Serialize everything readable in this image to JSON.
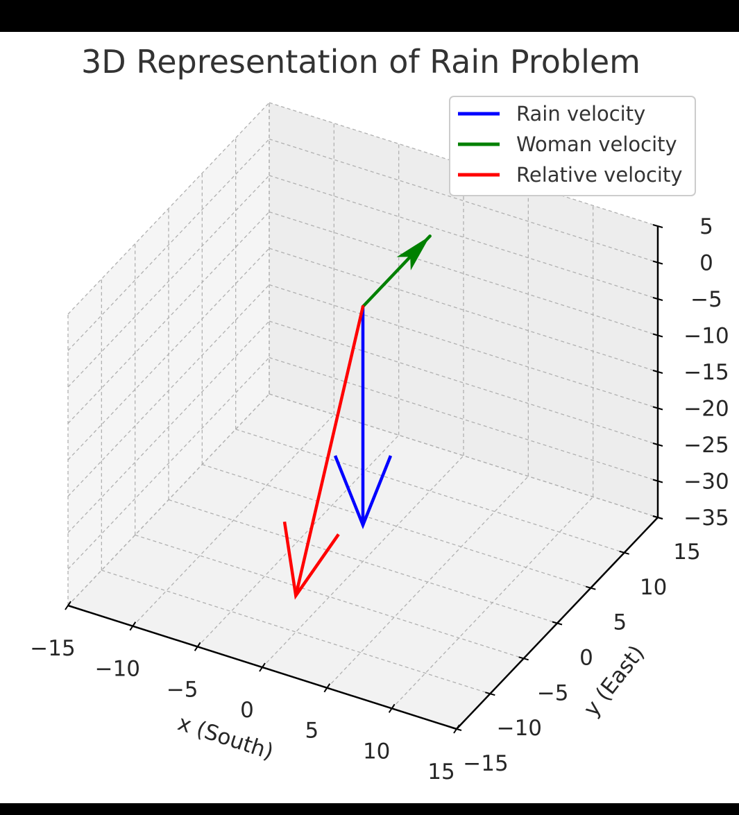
{
  "chart_data": {
    "type": "line",
    "title": "3D Representation of Rain Problem",
    "xlabel": "x (South)",
    "ylabel": "y (East)",
    "zlabel": "",
    "xlim": [
      -15,
      15
    ],
    "ylim": [
      -15,
      15
    ],
    "zlim": [
      -35,
      5
    ],
    "x_ticks": [
      "−15",
      "−10",
      "−5",
      "0",
      "5",
      "10",
      "15"
    ],
    "y_ticks": [
      "−15",
      "−10",
      "−5",
      "0",
      "5",
      "10",
      "15"
    ],
    "z_ticks": [
      "5",
      "0",
      "−5",
      "−10",
      "−15",
      "−20",
      "−25",
      "−30",
      "−35"
    ],
    "grid": true,
    "legend_position": "top-right",
    "series": [
      {
        "name": "Rain velocity",
        "color": "#0000ff",
        "from": [
          0,
          0,
          0
        ],
        "to": [
          0,
          0,
          -30
        ]
      },
      {
        "name": "Woman velocity",
        "color": "#008000",
        "from": [
          0,
          0,
          0
        ],
        "to": [
          0,
          10,
          0
        ]
      },
      {
        "name": "Relative velocity",
        "color": "#ff0000",
        "from": [
          0,
          0,
          0
        ],
        "to": [
          0,
          -10,
          -30
        ]
      }
    ]
  }
}
